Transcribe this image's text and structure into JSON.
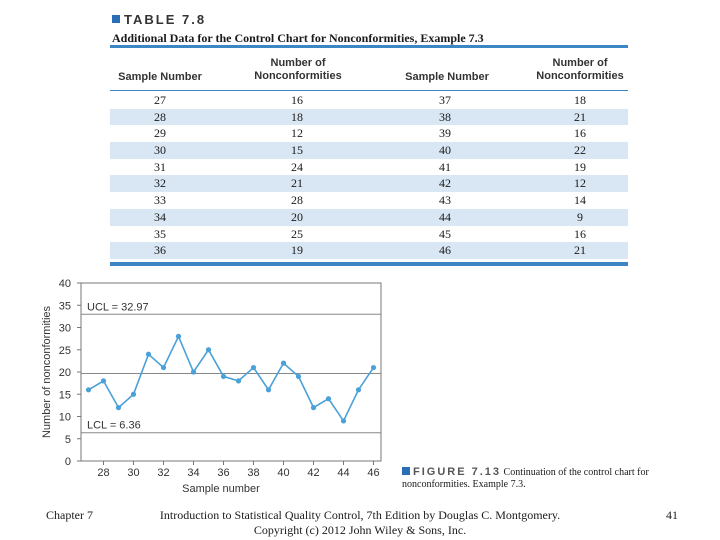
{
  "table": {
    "label": "TABLE 7.8",
    "caption": "Additional Data for the Control Chart for Nonconformities, Example 7.3",
    "headers": [
      "Sample Number",
      "Number of Nonconformities",
      "Sample Number",
      "Number of Nonconformities"
    ],
    "rows": [
      [
        "27",
        "16",
        "37",
        "18"
      ],
      [
        "28",
        "18",
        "38",
        "21"
      ],
      [
        "29",
        "12",
        "39",
        "16"
      ],
      [
        "30",
        "15",
        "40",
        "22"
      ],
      [
        "31",
        "24",
        "41",
        "19"
      ],
      [
        "32",
        "21",
        "42",
        "12"
      ],
      [
        "33",
        "28",
        "43",
        "14"
      ],
      [
        "34",
        "20",
        "44",
        "9"
      ],
      [
        "35",
        "25",
        "45",
        "16"
      ],
      [
        "36",
        "19",
        "46",
        "21"
      ]
    ],
    "accent_color": "#3d86c6",
    "shade_color": "#d9e6f3"
  },
  "chart_data": {
    "type": "line",
    "x": [
      27,
      28,
      29,
      30,
      31,
      32,
      33,
      34,
      35,
      36,
      37,
      38,
      39,
      40,
      41,
      42,
      43,
      44,
      45,
      46
    ],
    "values": [
      16,
      18,
      12,
      15,
      24,
      21,
      28,
      20,
      25,
      19,
      18,
      21,
      16,
      22,
      19,
      12,
      14,
      9,
      16,
      21
    ],
    "xlabel": "Sample number",
    "ylabel": "Number of nonconformities",
    "xticks": [
      28,
      30,
      32,
      34,
      36,
      38,
      40,
      42,
      44,
      46
    ],
    "xtick_labels": [
      "28",
      "30",
      "32",
      "34",
      "36",
      "38",
      "40",
      "42",
      "44",
      "46"
    ],
    "yticks": [
      0,
      5,
      10,
      15,
      20,
      25,
      30,
      35,
      40
    ],
    "xlim": [
      26.5,
      46.5
    ],
    "ylim": [
      0,
      40
    ],
    "ucl": 32.97,
    "lcl": 6.36,
    "ucl_label": "UCL = 32.97",
    "lcl_label": "LCL = 6.36",
    "line_color": "#4aa0d8"
  },
  "figure": {
    "label": "FIGURE 7.13",
    "caption": "Continuation of the control chart for nonconformities. Example 7.3."
  },
  "footer": {
    "chapter": "Chapter 7",
    "source_line1": "Introduction to Statistical Quality Control, 7th Edition by Douglas C. Montgomery.",
    "source_line2": "Copyright (c) 2012 John Wiley & Sons, Inc.",
    "page_number": "41"
  }
}
